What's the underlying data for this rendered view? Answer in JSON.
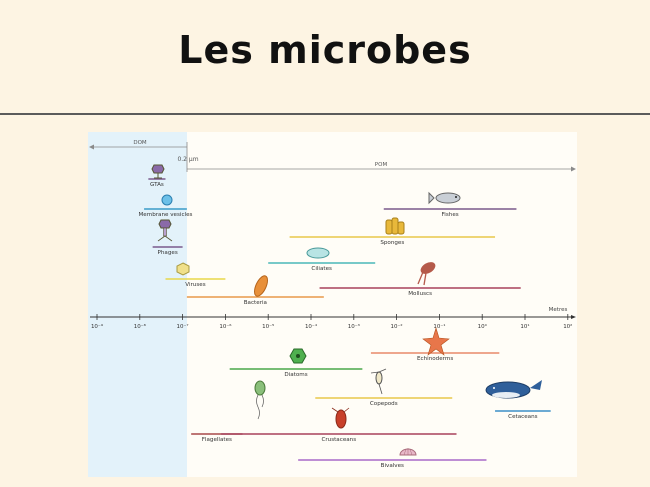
{
  "title": "Les microbes",
  "figure": {
    "dom_label": "DOM",
    "pom_label": "POM",
    "cutoff_label": "0.2 µm",
    "axis_label": "Metres",
    "ticks": [
      "10⁻⁹",
      "10⁻⁸",
      "10⁻⁷",
      "10⁻⁶",
      "10⁻⁵",
      "10⁻⁴",
      "10⁻³",
      "10⁻²",
      "10⁻¹",
      "10⁰",
      "10¹",
      "10²"
    ],
    "groups_above": [
      {
        "label": "GTAs",
        "range": [
          -7.8,
          -7.4
        ],
        "color": "#7a5a8c",
        "icon": "gta-icon"
      },
      {
        "label": "Membrane vesicles",
        "range": [
          -7.9,
          -6.9
        ],
        "color": "#3b9bc7",
        "icon": "vesicle-icon"
      },
      {
        "label": "Phages",
        "range": [
          -7.7,
          -7.0
        ],
        "color": "#7a5a8c",
        "icon": "phage-icon"
      },
      {
        "label": "Viruses",
        "range": [
          -7.4,
          -6.0
        ],
        "color": "#e8d84a",
        "icon": "virus-icon"
      },
      {
        "label": "Bacteria",
        "range": [
          -6.9,
          -3.7
        ],
        "color": "#e89a4a",
        "icon": "bacteria-icon"
      },
      {
        "label": "Ciliates",
        "range": [
          -5.0,
          -2.5
        ],
        "color": "#4ab8b8",
        "icon": "ciliate-icon"
      },
      {
        "label": "Sponges",
        "range": [
          -4.5,
          0.3
        ],
        "color": "#e8c84a",
        "icon": "sponge-icon"
      },
      {
        "label": "Molluscs",
        "range": [
          -3.8,
          0.9
        ],
        "color": "#a8425c",
        "icon": "mollusc-icon"
      },
      {
        "label": "Fishes",
        "range": [
          -2.3,
          0.8
        ],
        "color": "#7a5a8c",
        "icon": "fish-icon"
      }
    ],
    "groups_below": [
      {
        "label": "Echinoderms",
        "range": [
          -2.6,
          0.4
        ],
        "color": "#e88a6a",
        "icon": "starfish-icon"
      },
      {
        "label": "Diatoms",
        "range": [
          -5.9,
          -2.8
        ],
        "color": "#4aa84a",
        "icon": "diatom-icon"
      },
      {
        "label": "Copepods",
        "range": [
          -3.9,
          -0.7
        ],
        "color": "#e8c84a",
        "icon": "copepod-icon"
      },
      {
        "label": "Cetaceans",
        "range": [
          0.3,
          1.6
        ],
        "color": "#3b8fc7",
        "icon": "whale-icon"
      },
      {
        "label": "Flagellates",
        "range": [
          -6.8,
          -5.6
        ],
        "color": "#a84a4a",
        "icon": "flagellate-icon"
      },
      {
        "label": "Crustaceans",
        "range": [
          -6.1,
          -0.6
        ],
        "color": "#a8425c",
        "icon": "crustacean-icon"
      },
      {
        "label": "Bivalves",
        "range": [
          -4.3,
          0.1
        ],
        "color": "#a86ac8",
        "icon": "bivalve-icon"
      }
    ]
  }
}
